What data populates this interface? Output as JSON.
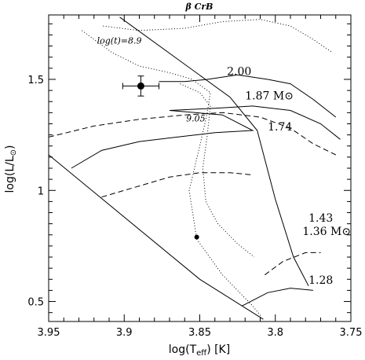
{
  "chart_data": {
    "type": "line",
    "title": "β CrB",
    "xlabel": "log(T",
    "xlabel_sub": "eff",
    "xlabel_tail": ") [K]",
    "ylabel": "log(L/L",
    "ylabel_sub": "⊙",
    "ylabel_tail": ")",
    "xlim": [
      3.95,
      3.75
    ],
    "ylim": [
      0.41,
      1.79
    ],
    "x_ticks": [
      3.95,
      3.9,
      3.85,
      3.8,
      3.75
    ],
    "x_tick_labels": [
      "3.95",
      "3.9",
      "3.85",
      "3.8",
      "3.75"
    ],
    "y_ticks": [
      0.5,
      1.0,
      1.5
    ],
    "y_tick_labels": [
      "0.5",
      "1",
      "1.5"
    ],
    "grid": false,
    "annotations": [
      {
        "text": "log(t)=8.9",
        "x": 3.918,
        "y": 1.66
      },
      {
        "text": "9.05",
        "x": 3.859,
        "y": 1.31
      },
      {
        "text": "2.00",
        "x": 3.832,
        "y": 1.52
      },
      {
        "text": "1.87 M⊙",
        "x": 3.82,
        "y": 1.41
      },
      {
        "text": "1.74",
        "x": 3.805,
        "y": 1.27
      },
      {
        "text": "1.43",
        "x": 3.778,
        "y": 0.86
      },
      {
        "text": "1.36 M⊙",
        "x": 3.782,
        "y": 0.8
      },
      {
        "text": "1.28",
        "x": 3.778,
        "y": 0.58
      }
    ],
    "series": [
      {
        "style": "solid",
        "points": [
          [
            3.95,
            1.16
          ],
          [
            3.85,
            0.6
          ],
          [
            3.808,
            0.42
          ]
        ]
      },
      {
        "style": "solid",
        "points": [
          [
            3.903,
            1.78
          ],
          [
            3.83,
            1.42
          ],
          [
            3.812,
            1.27
          ],
          [
            3.8,
            0.96
          ],
          [
            3.788,
            0.7
          ],
          [
            3.778,
            0.57
          ]
        ]
      },
      {
        "style": "solid",
        "points": [
          [
            3.877,
            1.49
          ],
          [
            3.86,
            1.49
          ],
          [
            3.845,
            1.5
          ],
          [
            3.825,
            1.52
          ],
          [
            3.805,
            1.5
          ],
          [
            3.79,
            1.48
          ],
          [
            3.775,
            1.41
          ],
          [
            3.76,
            1.33
          ]
        ]
      },
      {
        "style": "solid",
        "points": [
          [
            3.935,
            1.1
          ],
          [
            3.915,
            1.18
          ],
          [
            3.89,
            1.22
          ],
          [
            3.865,
            1.24
          ],
          [
            3.84,
            1.26
          ],
          [
            3.815,
            1.27
          ],
          [
            3.835,
            1.34
          ],
          [
            3.87,
            1.36
          ],
          [
            3.84,
            1.37
          ],
          [
            3.815,
            1.38
          ],
          [
            3.79,
            1.36
          ],
          [
            3.77,
            1.3
          ],
          [
            3.757,
            1.23
          ]
        ]
      },
      {
        "style": "dashed",
        "points": [
          [
            3.95,
            1.24
          ],
          [
            3.92,
            1.29
          ],
          [
            3.89,
            1.32
          ],
          [
            3.86,
            1.34
          ],
          [
            3.835,
            1.35
          ],
          [
            3.81,
            1.33
          ],
          [
            3.79,
            1.28
          ],
          [
            3.775,
            1.21
          ],
          [
            3.76,
            1.16
          ]
        ]
      },
      {
        "style": "dashed",
        "points": [
          [
            3.915,
            0.97
          ],
          [
            3.89,
            1.02
          ],
          [
            3.87,
            1.06
          ],
          [
            3.85,
            1.08
          ],
          [
            3.83,
            1.08
          ],
          [
            3.815,
            1.07
          ]
        ]
      },
      {
        "style": "dashed",
        "points": [
          [
            3.807,
            0.62
          ],
          [
            3.795,
            0.68
          ],
          [
            3.78,
            0.72
          ],
          [
            3.77,
            0.72
          ]
        ]
      },
      {
        "style": "solid",
        "points": [
          [
            3.822,
            0.48
          ],
          [
            3.805,
            0.54
          ],
          [
            3.79,
            0.56
          ],
          [
            3.775,
            0.55
          ]
        ]
      },
      {
        "style": "dotted",
        "points": [
          [
            3.914,
            1.74
          ],
          [
            3.89,
            1.72
          ],
          [
            3.86,
            1.73
          ],
          [
            3.835,
            1.76
          ],
          [
            3.81,
            1.77
          ],
          [
            3.79,
            1.74
          ],
          [
            3.775,
            1.68
          ],
          [
            3.762,
            1.62
          ]
        ]
      },
      {
        "style": "dotted",
        "points": [
          [
            3.928,
            1.72
          ],
          [
            3.908,
            1.62
          ],
          [
            3.89,
            1.56
          ],
          [
            3.87,
            1.53
          ],
          [
            3.855,
            1.5
          ],
          [
            3.843,
            1.44
          ],
          [
            3.845,
            1.35
          ],
          [
            3.85,
            1.2
          ],
          [
            3.857,
            1.0
          ],
          [
            3.852,
            0.78
          ],
          [
            3.835,
            0.62
          ],
          [
            3.815,
            0.48
          ],
          [
            3.809,
            0.43
          ]
        ]
      },
      {
        "style": "dotted",
        "points": [
          [
            3.863,
            1.48
          ],
          [
            3.85,
            1.44
          ],
          [
            3.843,
            1.38
          ],
          [
            3.845,
            1.25
          ],
          [
            3.848,
            1.1
          ],
          [
            3.846,
            0.95
          ],
          [
            3.838,
            0.85
          ],
          [
            3.825,
            0.76
          ],
          [
            3.814,
            0.7
          ]
        ]
      }
    ],
    "stars": [
      {
        "x": 3.889,
        "y": 1.47,
        "xerr": 0.012,
        "yerr": 0.045,
        "marker": "large-dot"
      },
      {
        "x": 3.852,
        "y": 0.79,
        "marker": "small-dot"
      }
    ]
  }
}
